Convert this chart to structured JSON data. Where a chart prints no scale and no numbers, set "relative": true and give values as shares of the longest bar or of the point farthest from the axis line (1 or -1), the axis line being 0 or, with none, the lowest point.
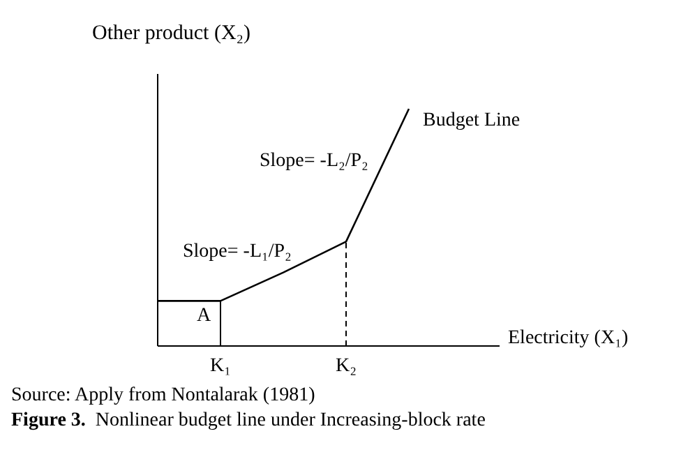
{
  "chart_data": {
    "type": "line",
    "relative": true,
    "ylabel": "Other product (X₂)",
    "xlabel": "Electricity (X₁)",
    "categories": [
      null,
      "K₁",
      null,
      "K₂",
      null
    ],
    "series": [
      {
        "name": "Budget Line",
        "color": "#000000",
        "values": [
          0.19,
          0.19,
          0.31,
          0.44,
          1
        ]
      }
    ],
    "ref_lines": [
      {
        "axis": "x",
        "value": "K₁",
        "line_style": "solid",
        "color": "#000000"
      },
      {
        "axis": "x",
        "value": "K₂",
        "line_style": "dashed",
        "color": "#000000"
      }
    ],
    "annotations": [
      "A",
      "Slope= -L₁/P₂",
      "Slope= -L₂/P₂",
      "Source: Apply from Nontalarak (1981)",
      "Figure 3.  Nonlinear budget line under Increasing-block rate"
    ],
    "marker": "none",
    "line_style": "solid",
    "grid": false
  }
}
